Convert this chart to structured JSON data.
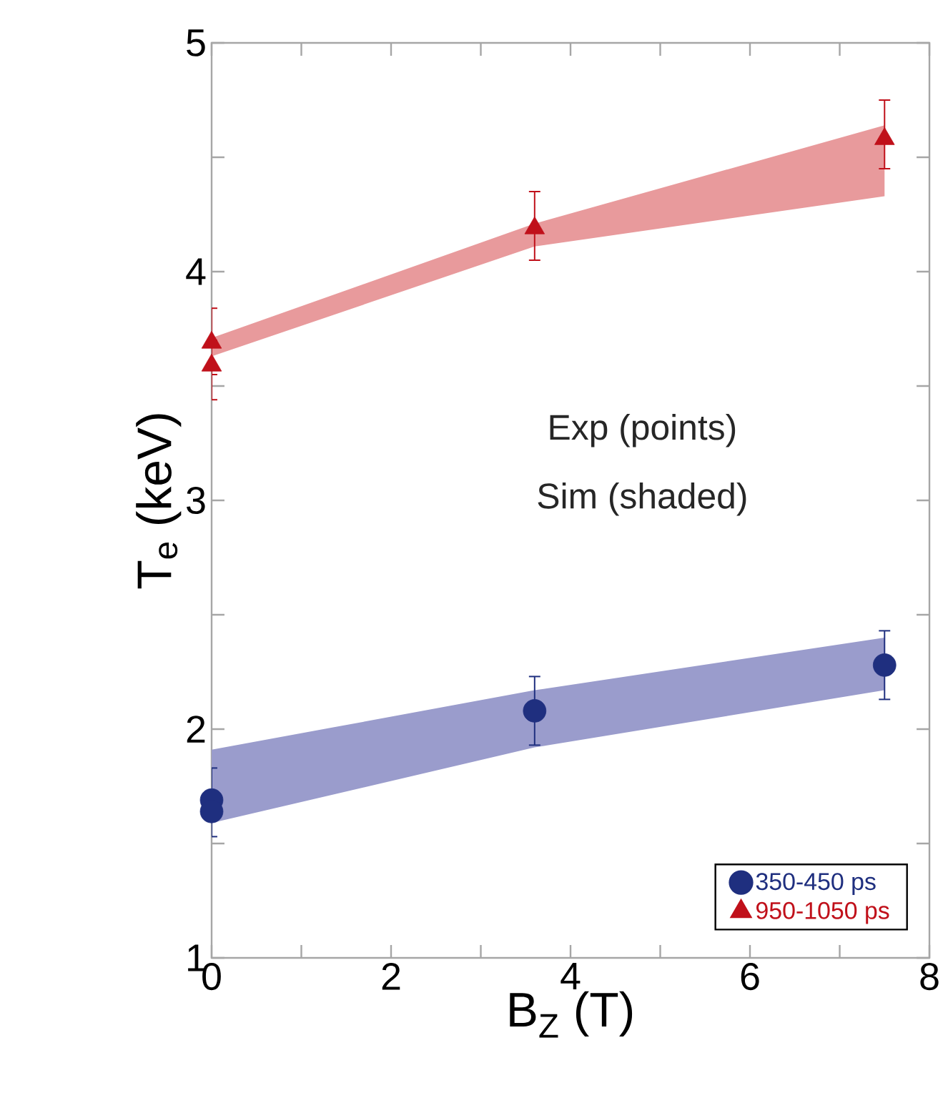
{
  "chart_data": {
    "type": "scatter",
    "xlabel": "B$_{Z}$ (T)",
    "ylabel": "T$_{e}$ (keV)",
    "annotations": [
      "Exp (points)",
      "Sim (shaded)"
    ],
    "xlim": [
      0,
      8
    ],
    "xticks": [
      0,
      2,
      4,
      6,
      8
    ],
    "ylim": [
      1,
      5
    ],
    "yticks": [
      1,
      2,
      3,
      4,
      5
    ],
    "grid": false,
    "legend": "bottom right",
    "series": [
      {
        "type": "area",
        "color": "#9a9ccc",
        "x": [
          0,
          3.6,
          7.5
        ],
        "values": [
          null,
          null,
          null
        ],
        "lower": [
          1.59,
          1.92,
          2.17
        ],
        "upper": [
          1.91,
          2.17,
          2.4
        ]
      },
      {
        "type": "area",
        "color": "#e89a9c",
        "x": [
          0,
          3.6,
          7.5
        ],
        "values": [
          null,
          null,
          null
        ],
        "lower": [
          3.63,
          4.11,
          4.33
        ],
        "upper": [
          3.71,
          4.21,
          4.64
        ]
      },
      {
        "name": "350-450 ps",
        "color": "#1f2f7f",
        "marker": "circle",
        "x": [
          0,
          0,
          3.6,
          7.5
        ],
        "values": [
          1.69,
          1.64,
          2.08,
          2.28
        ],
        "errors": [
          [
            1.53,
            1.83
          ],
          null,
          [
            1.93,
            2.23
          ],
          [
            2.13,
            2.43
          ]
        ]
      },
      {
        "name": "950-1050 ps",
        "color": "#c0101a",
        "marker": "triangle",
        "x": [
          0,
          0,
          3.6,
          7.5
        ],
        "values": [
          3.69,
          3.59,
          4.19,
          4.58
        ],
        "errors": [
          [
            3.55,
            3.84
          ],
          [
            3.44,
            3.7
          ],
          [
            4.05,
            4.35
          ],
          [
            4.45,
            4.75
          ]
        ]
      }
    ]
  }
}
